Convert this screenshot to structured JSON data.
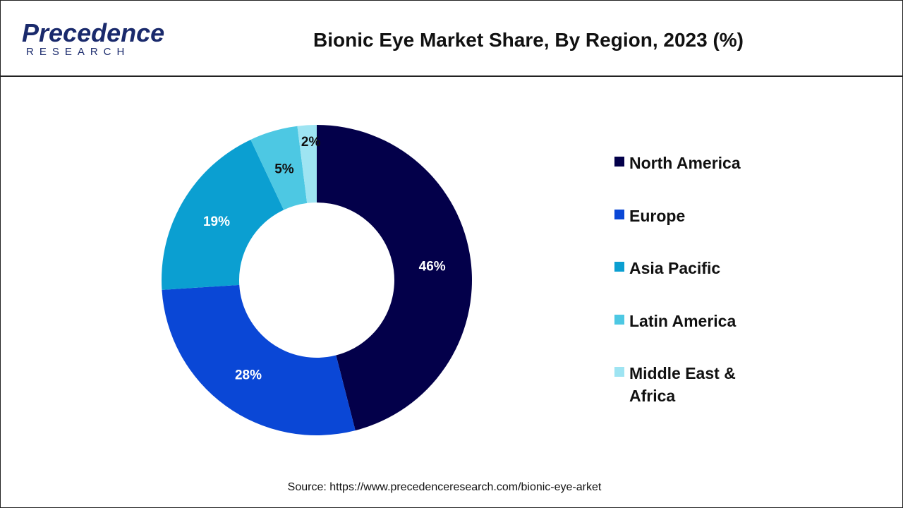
{
  "logo": {
    "name": "Precedence",
    "tagline": "RESEARCH"
  },
  "chart_data": {
    "type": "donut",
    "title": "Bionic Eye Market Share, By Region, 2023 (%)",
    "categories": [
      "North America",
      "Europe",
      "Asia Pacific",
      "Latin America",
      "Middle East & Africa"
    ],
    "values": [
      46,
      28,
      19,
      5,
      2
    ],
    "value_labels": [
      "46%",
      "28%",
      "19%",
      "5%",
      "2%"
    ],
    "colors": [
      "#03004a",
      "#0a47d6",
      "#0b9fd1",
      "#4dc8e3",
      "#9ee4f2"
    ],
    "source": "Source: https://www.precedenceresearch.com/bionic-eye-arket"
  }
}
